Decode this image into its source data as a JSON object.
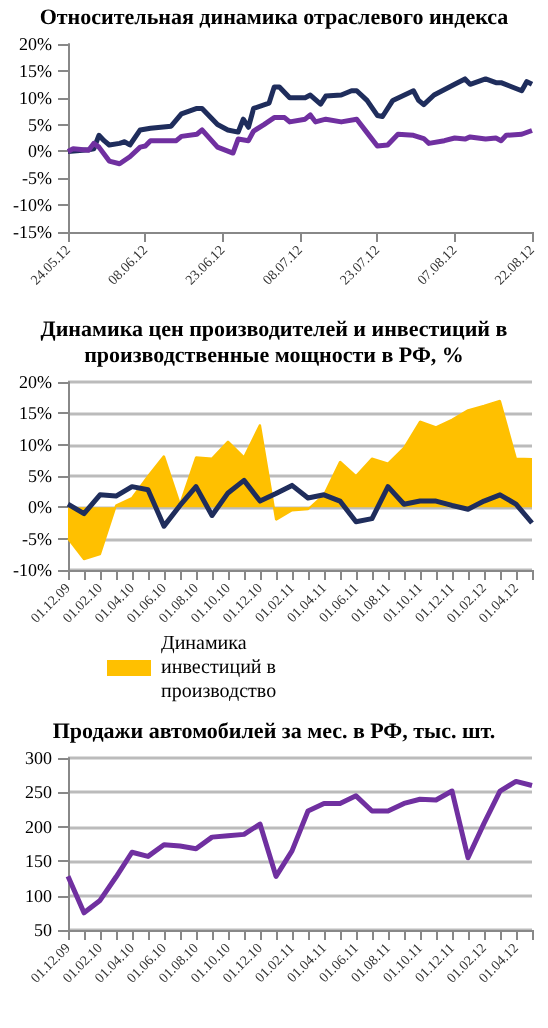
{
  "chart_data": [
    {
      "type": "line",
      "title": "Относительная динамика отраслевого индекса",
      "xlim": [
        "2012-05-24",
        "2012-08-22"
      ],
      "xticks": [
        {
          "value": "2012-05-24",
          "label": "24.05.12"
        },
        {
          "value": "2012-06-08",
          "label": "08.06.12"
        },
        {
          "value": "2012-06-23",
          "label": "23.06.12"
        },
        {
          "value": "2012-07-08",
          "label": "08.07.12"
        },
        {
          "value": "2012-07-23",
          "label": "23.07.12"
        },
        {
          "value": "2012-08-07",
          "label": "07.08.12"
        },
        {
          "value": "2012-08-22",
          "label": "22.08.12"
        }
      ],
      "ylim": [
        -15,
        20
      ],
      "yticks": [
        {
          "value": -15,
          "label": "-15%"
        },
        {
          "value": -10,
          "label": "-10%"
        },
        {
          "value": -5,
          "label": "-5%"
        },
        {
          "value": 0,
          "label": "0%"
        },
        {
          "value": 5,
          "label": "5%"
        },
        {
          "value": 10,
          "label": "10%"
        },
        {
          "value": 15,
          "label": "15%"
        },
        {
          "value": 20,
          "label": "20%"
        }
      ],
      "grid": false,
      "legend": false,
      "marker": "none",
      "line_style": "solid",
      "series": [
        {
          "color": "#1f2d5c",
          "x": [
            "2012-05-24",
            "2012-05-28",
            "2012-05-29",
            "2012-05-30",
            "2012-05-31",
            "2012-06-01",
            "2012-06-03",
            "2012-06-04",
            "2012-06-05",
            "2012-06-07",
            "2012-06-09",
            "2012-06-13",
            "2012-06-15",
            "2012-06-18",
            "2012-06-19",
            "2012-06-22",
            "2012-06-24",
            "2012-06-26",
            "2012-06-27",
            "2012-06-28",
            "2012-06-29",
            "2012-07-02",
            "2012-07-03",
            "2012-07-04",
            "2012-07-06",
            "2012-07-09",
            "2012-07-10",
            "2012-07-12",
            "2012-07-13",
            "2012-07-16",
            "2012-07-18",
            "2012-07-19",
            "2012-07-21",
            "2012-07-23",
            "2012-07-24",
            "2012-07-26",
            "2012-07-30",
            "2012-07-31",
            "2012-08-01",
            "2012-08-03",
            "2012-08-07",
            "2012-08-09",
            "2012-08-10",
            "2012-08-13",
            "2012-08-15",
            "2012-08-16",
            "2012-08-20",
            "2012-08-21",
            "2012-08-22"
          ],
          "values": [
            0,
            0.3,
            0.5,
            3,
            2,
            1.2,
            1.5,
            1.8,
            1.2,
            4,
            4.3,
            4.7,
            7,
            8,
            8,
            5,
            4,
            3.6,
            6,
            4.5,
            8,
            9,
            12,
            12,
            10,
            10,
            10.5,
            8.8,
            10.3,
            10.5,
            11.3,
            11.3,
            9.5,
            6.7,
            6.5,
            9.5,
            11.3,
            9.5,
            8.7,
            10.5,
            12.5,
            13.5,
            12.5,
            13.5,
            12.8,
            12.8,
            11.3,
            13,
            12.5
          ]
        },
        {
          "color": "#7030a0",
          "x": [
            "2012-05-24",
            "2012-05-25",
            "2012-05-28",
            "2012-05-29",
            "2012-05-30",
            "2012-06-01",
            "2012-06-03",
            "2012-06-05",
            "2012-06-07",
            "2012-06-08",
            "2012-06-09",
            "2012-06-14",
            "2012-06-15",
            "2012-06-18",
            "2012-06-19",
            "2012-06-22",
            "2012-06-25",
            "2012-06-26",
            "2012-06-28",
            "2012-06-29",
            "2012-07-01",
            "2012-07-03",
            "2012-07-05",
            "2012-07-06",
            "2012-07-09",
            "2012-07-10",
            "2012-07-11",
            "2012-07-13",
            "2012-07-16",
            "2012-07-19",
            "2012-07-21",
            "2012-07-23",
            "2012-07-25",
            "2012-07-27",
            "2012-07-30",
            "2012-08-01",
            "2012-08-02",
            "2012-08-05",
            "2012-08-07",
            "2012-08-09",
            "2012-08-10",
            "2012-08-13",
            "2012-08-15",
            "2012-08-16",
            "2012-08-17",
            "2012-08-20",
            "2012-08-22"
          ],
          "values": [
            0,
            0.5,
            0.2,
            1.5,
            0.8,
            -1.8,
            -2.3,
            -1,
            0.8,
            1,
            2,
            2,
            2.8,
            3.2,
            4,
            0.8,
            -0.3,
            2.3,
            2,
            3.8,
            5,
            6.3,
            6.3,
            5.5,
            6,
            6.8,
            5.5,
            6,
            5.5,
            6,
            3.5,
            1,
            1.2,
            3.2,
            3,
            2.4,
            1.5,
            2,
            2.5,
            2.3,
            2.7,
            2.3,
            2.5,
            2,
            3,
            3.2,
            3.9
          ]
        }
      ]
    },
    {
      "type": "line",
      "title": "Динамика цен производителей и инвестиций в производственные мощности в РФ, %",
      "categories": [
        "01.12.09",
        null,
        "01.02.10",
        null,
        "01.04.10",
        null,
        "01.06.10",
        null,
        "01.08.10",
        null,
        "01.10.10",
        null,
        "01.12.10",
        null,
        "01.02.11",
        null,
        "01.04.11",
        null,
        "01.06.11",
        null,
        "01.08.11",
        null,
        "01.10.11",
        null,
        "01.12.11",
        null,
        "01.02.12",
        null,
        "01.04.12",
        null
      ],
      "ylim": [
        -10,
        20
      ],
      "yticks": [
        {
          "value": -10,
          "label": "-10%"
        },
        {
          "value": -5,
          "label": "-5%"
        },
        {
          "value": 0,
          "label": "0%"
        },
        {
          "value": 5,
          "label": "5%"
        },
        {
          "value": 10,
          "label": "10%"
        },
        {
          "value": 15,
          "label": "15%"
        },
        {
          "value": 20,
          "label": "20%"
        }
      ],
      "grid": "y",
      "legend": "bottom",
      "marker": "none",
      "line_style": "solid",
      "series": [
        {
          "type": "area",
          "name": "Динамика инвестиций в производство",
          "color": "#ffc000",
          "values": [
            -5,
            -8.3,
            -7.5,
            0.3,
            1.5,
            5,
            8.2,
            0.5,
            8,
            7.8,
            10.5,
            8,
            13.2,
            -2,
            -0.5,
            -0.3,
            2,
            7.3,
            5,
            7.8,
            7,
            9.5,
            13.7,
            12.8,
            14,
            15.5,
            16.2,
            17,
            7.8,
            7.7
          ]
        },
        {
          "type": "line",
          "color": "#1f2d5c",
          "values": [
            0.5,
            -1,
            2,
            1.8,
            3.3,
            2.8,
            -3,
            0.3,
            3.3,
            -1.3,
            2.3,
            4.3,
            1,
            2.2,
            3.5,
            1.5,
            2,
            1,
            -2.3,
            -1.8,
            3.3,
            0.5,
            1,
            1,
            0.3,
            -0.3,
            1,
            2,
            0.5,
            -2.5
          ]
        }
      ]
    },
    {
      "type": "line",
      "title": "Продажи автомобилей за мес. в РФ, тыс. шт.",
      "categories": [
        "01.12.09",
        null,
        "01.02.10",
        null,
        "01.04.10",
        null,
        "01.06.10",
        null,
        "01.08.10",
        null,
        "01.10.10",
        null,
        "01.12.10",
        null,
        "01.02.11",
        null,
        "01.04.11",
        null,
        "01.06.11",
        null,
        "01.08.11",
        null,
        "01.10.11",
        null,
        "01.12.11",
        null,
        "01.02.12",
        null,
        "01.04.12",
        null
      ],
      "ylim": [
        50,
        300
      ],
      "yticks": [
        50,
        100,
        150,
        200,
        250,
        300
      ],
      "grid": "y",
      "legend": false,
      "marker": "none",
      "line_style": "solid",
      "series": [
        {
          "color": "#7030a0",
          "values": [
            128,
            75,
            93,
            127,
            163,
            157,
            174,
            172,
            168,
            185,
            187,
            189,
            204,
            128,
            165,
            223,
            234,
            234,
            245,
            223,
            223,
            234,
            240,
            239,
            252,
            155,
            205,
            252,
            266,
            260
          ]
        }
      ]
    }
  ]
}
